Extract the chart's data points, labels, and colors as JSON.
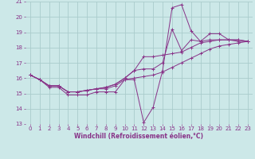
{
  "background_color": "#cce8e8",
  "grid_color": "#aacccc",
  "line_color": "#883388",
  "marker_color": "#883388",
  "xlabel": "Windchill (Refroidissement éolien,°C)",
  "xlabel_color": "#883388",
  "xlim": [
    -0.5,
    23.5
  ],
  "ylim": [
    13,
    21
  ],
  "xticks": [
    0,
    1,
    2,
    3,
    4,
    5,
    6,
    7,
    8,
    9,
    10,
    11,
    12,
    13,
    14,
    15,
    16,
    17,
    18,
    19,
    20,
    21,
    22,
    23
  ],
  "yticks": [
    13,
    14,
    15,
    16,
    17,
    18,
    19,
    20,
    21
  ],
  "tick_color": "#883388",
  "tick_fontsize": 5.0,
  "xlabel_fontsize": 5.5,
  "series": [
    [
      16.2,
      15.9,
      15.4,
      15.4,
      14.9,
      14.9,
      14.9,
      15.1,
      15.1,
      15.1,
      15.9,
      15.9,
      13.1,
      14.1,
      16.5,
      20.6,
      20.8,
      19.1,
      18.4,
      18.9,
      18.9,
      18.5,
      18.4,
      18.4
    ],
    [
      16.2,
      15.9,
      15.5,
      15.5,
      15.1,
      15.1,
      15.2,
      15.3,
      15.3,
      15.5,
      15.9,
      16.0,
      16.1,
      16.2,
      16.4,
      16.7,
      17.0,
      17.3,
      17.6,
      17.9,
      18.1,
      18.2,
      18.3,
      18.4
    ],
    [
      16.2,
      15.9,
      15.5,
      15.5,
      15.1,
      15.1,
      15.2,
      15.3,
      15.4,
      15.6,
      16.0,
      16.5,
      17.4,
      17.4,
      17.5,
      17.6,
      17.7,
      18.0,
      18.3,
      18.4,
      18.5,
      18.5,
      18.5,
      18.4
    ],
    [
      16.2,
      15.9,
      15.5,
      15.5,
      15.1,
      15.1,
      15.2,
      15.3,
      15.4,
      15.6,
      16.0,
      16.5,
      16.6,
      16.6,
      17.0,
      19.2,
      17.8,
      18.5,
      18.4,
      18.5,
      18.5,
      18.5,
      18.5,
      18.4
    ]
  ]
}
